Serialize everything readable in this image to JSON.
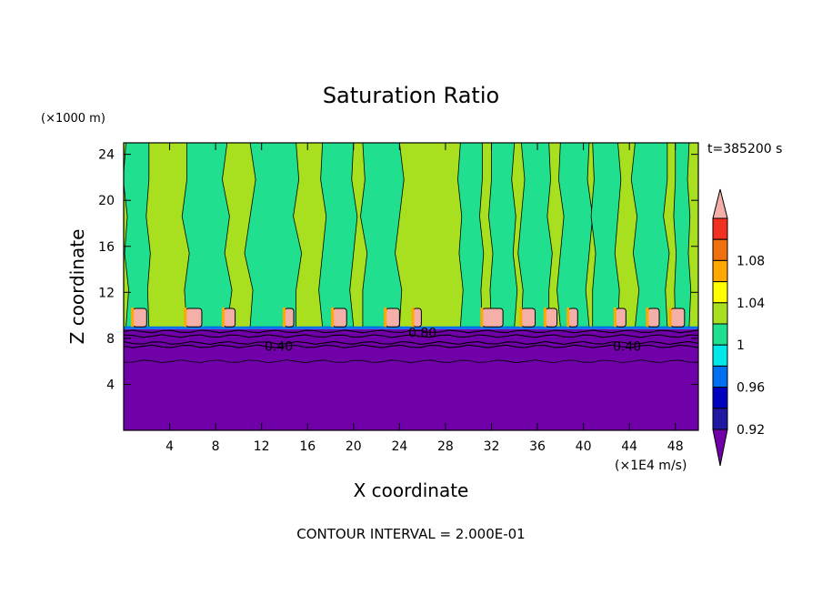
{
  "chart_data": {
    "type": "heatmap",
    "title": "Saturation Ratio",
    "xlabel": "X coordinate",
    "ylabel": "Z coordinate",
    "x_unit": "(×1E4 m/s)",
    "y_unit": "(×1000 m)",
    "time_label": "t=385200 s",
    "footer": "CONTOUR INTERVAL = 2.000E-01",
    "xlim": [
      0,
      50
    ],
    "ylim": [
      0,
      25
    ],
    "x_ticks": [
      4,
      8,
      12,
      16,
      20,
      24,
      28,
      32,
      36,
      40,
      44,
      48
    ],
    "y_ticks": [
      4,
      8,
      12,
      16,
      20,
      24
    ],
    "contour_labels": [
      {
        "text": "0.40",
        "x": 13.5,
        "z": 7.3
      },
      {
        "text": "0.80",
        "x": 26.0,
        "z": 8.5
      },
      {
        "text": "0.40",
        "x": 43.8,
        "z": 7.3
      }
    ],
    "colorbar": {
      "tick_labels": [
        "1.08",
        "1.04",
        "1",
        "0.96",
        "0.92"
      ],
      "levels": [
        {
          "color": "#f4b0a8"
        },
        {
          "color": "#f03020"
        },
        {
          "color": "#f07010"
        },
        {
          "color": "#ffa800"
        },
        {
          "color": "#ffff00"
        },
        {
          "color": "#a8e020"
        },
        {
          "color": "#20e090"
        },
        {
          "color": "#00e8e8"
        },
        {
          "color": "#0070f0"
        },
        {
          "color": "#0000c0"
        },
        {
          "color": "#2018a0"
        },
        {
          "color": "#7000a8"
        }
      ]
    },
    "regions": {
      "dry_layer_top_z": 8.8,
      "cloud_base_z": 9.0,
      "cloud_top_z": 10.6,
      "upper_background_color": "#a8e020",
      "green_column_color": "#20e090",
      "dry_color": "#7000a8",
      "green_columns_x": [
        [
          0.2,
          2.2
        ],
        [
          5.5,
          9.0
        ],
        [
          11.0,
          15.0
        ],
        [
          17.3,
          20.0
        ],
        [
          20.8,
          24.0
        ],
        [
          29.3,
          31.2
        ],
        [
          32.0,
          34.0
        ],
        [
          34.6,
          37.0
        ],
        [
          38.0,
          40.5
        ],
        [
          40.8,
          43.0
        ],
        [
          44.5,
          47.3
        ],
        [
          48.0,
          49.2
        ]
      ],
      "cloud_cells_x": [
        [
          0.8,
          2.0
        ],
        [
          5.4,
          6.8
        ],
        [
          8.7,
          9.7
        ],
        [
          14.0,
          14.8
        ],
        [
          18.2,
          19.4
        ],
        [
          22.8,
          24.0
        ],
        [
          25.2,
          25.9
        ],
        [
          31.2,
          33.0
        ],
        [
          34.6,
          35.8
        ],
        [
          36.7,
          37.7
        ],
        [
          38.7,
          39.5
        ],
        [
          42.8,
          43.7
        ],
        [
          45.6,
          46.6
        ],
        [
          47.6,
          48.8
        ]
      ]
    }
  }
}
